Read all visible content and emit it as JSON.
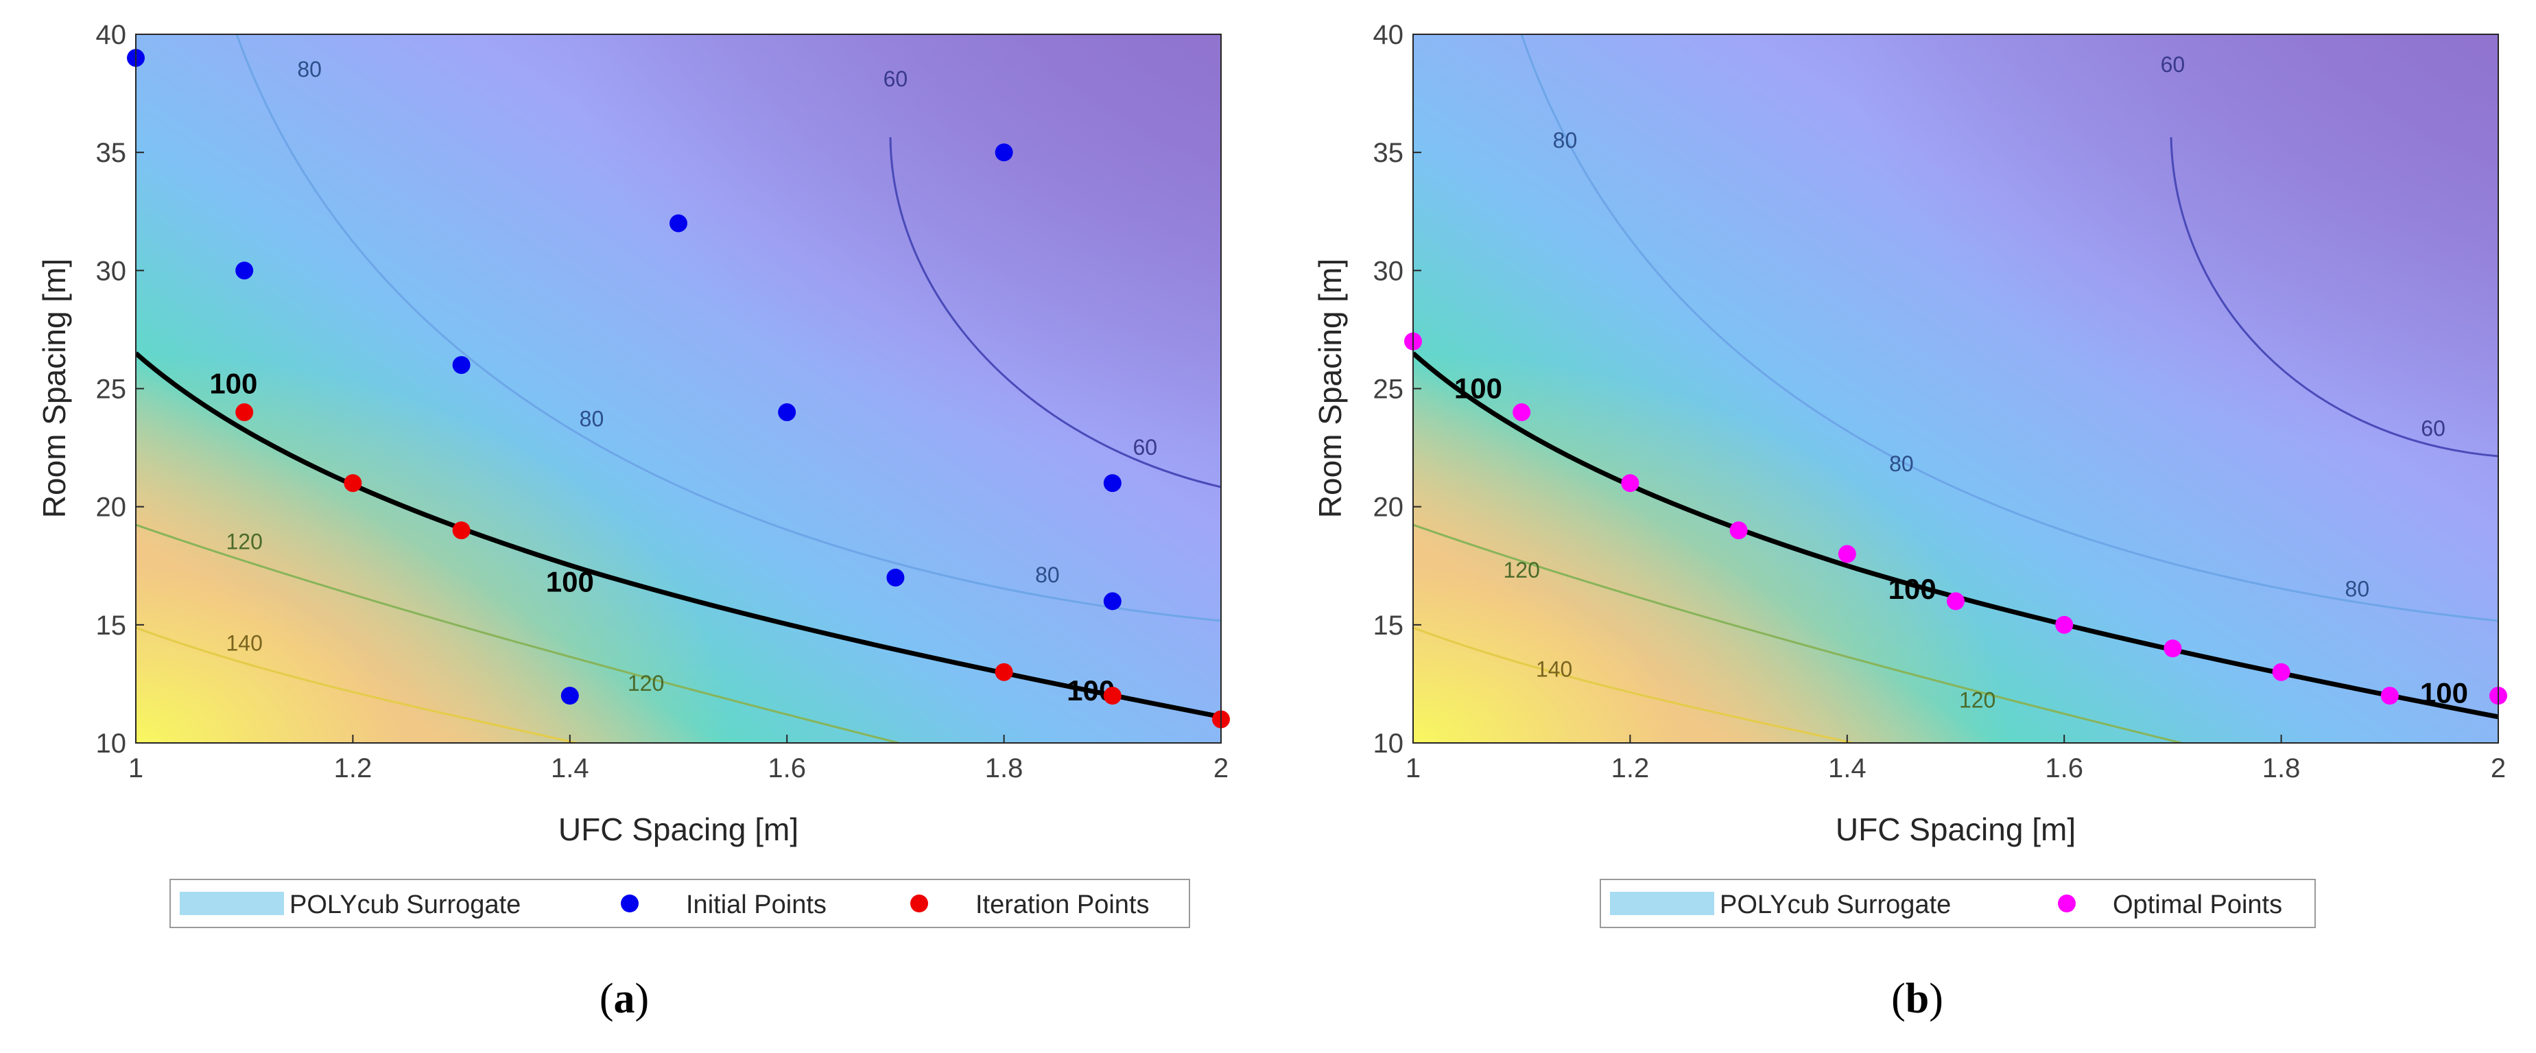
{
  "chart_data": [
    {
      "type": "scatter",
      "panel": "a",
      "surface": "contour",
      "xlabel": "UFC Spacing [m]",
      "ylabel": "Room Spacing [m]",
      "xlim": [
        1,
        2
      ],
      "ylim": [
        10,
        40
      ],
      "xticks": [
        "1",
        "1.2",
        "1.4",
        "1.6",
        "1.8",
        "2"
      ],
      "yticks": [
        "10",
        "15",
        "20",
        "25",
        "30",
        "35",
        "40"
      ],
      "contour_labels": [
        {
          "text": "80",
          "x": 1.16,
          "y": 38.2,
          "level": 80
        },
        {
          "text": "80",
          "x": 1.42,
          "y": 23.4,
          "level": 80
        },
        {
          "text": "80",
          "x": 1.84,
          "y": 16.8,
          "level": 80
        },
        {
          "text": "60",
          "x": 1.7,
          "y": 37.8,
          "level": 60
        },
        {
          "text": "60",
          "x": 1.93,
          "y": 22.2,
          "level": 60
        },
        {
          "text": "100",
          "x": 1.09,
          "y": 24.8,
          "level": 100
        },
        {
          "text": "100",
          "x": 1.4,
          "y": 16.4,
          "level": 100
        },
        {
          "text": "100",
          "x": 1.88,
          "y": 11.8,
          "level": 100
        },
        {
          "text": "120",
          "x": 1.1,
          "y": 18.2,
          "level": 120
        },
        {
          "text": "120",
          "x": 1.47,
          "y": 12.2,
          "level": 120
        },
        {
          "text": "140",
          "x": 1.1,
          "y": 13.9,
          "level": 140
        }
      ],
      "series": [
        {
          "name": "Initial Points",
          "color": "#0000ee",
          "x": [
            1.0,
            1.1,
            1.3,
            1.4,
            1.5,
            1.6,
            1.7,
            1.8,
            1.9,
            1.9
          ],
          "y": [
            39,
            30,
            26,
            12,
            32,
            24,
            17,
            35,
            21,
            16
          ]
        },
        {
          "name": "Iteration Points",
          "color": "#ee0000",
          "x": [
            1.1,
            1.2,
            1.3,
            1.8,
            1.9,
            2.0
          ],
          "y": [
            24,
            21,
            19,
            13,
            12,
            11
          ]
        }
      ],
      "legend": [
        "POLYcub Surrogate",
        "Initial Points",
        "Iteration Points"
      ],
      "legend_position": "bottom",
      "tag": "a"
    },
    {
      "type": "scatter",
      "panel": "b",
      "surface": "contour",
      "xlabel": "UFC Spacing [m]",
      "ylabel": "Room Spacing [m]",
      "xlim": [
        1,
        2
      ],
      "ylim": [
        10,
        40
      ],
      "xticks": [
        "1",
        "1.2",
        "1.4",
        "1.6",
        "1.8",
        "2"
      ],
      "yticks": [
        "10",
        "15",
        "20",
        "25",
        "30",
        "35",
        "40"
      ],
      "contour_labels": [
        {
          "text": "80",
          "x": 1.14,
          "y": 35.2,
          "level": 80
        },
        {
          "text": "80",
          "x": 1.45,
          "y": 21.5,
          "level": 80
        },
        {
          "text": "80",
          "x": 1.87,
          "y": 16.2,
          "level": 80
        },
        {
          "text": "60",
          "x": 1.7,
          "y": 38.4,
          "level": 60
        },
        {
          "text": "60",
          "x": 1.94,
          "y": 23.0,
          "level": 60
        },
        {
          "text": "100",
          "x": 1.06,
          "y": 24.6,
          "level": 100
        },
        {
          "text": "100",
          "x": 1.46,
          "y": 16.1,
          "level": 100
        },
        {
          "text": "100",
          "x": 1.95,
          "y": 11.7,
          "level": 100
        },
        {
          "text": "120",
          "x": 1.1,
          "y": 17.0,
          "level": 120
        },
        {
          "text": "120",
          "x": 1.52,
          "y": 11.5,
          "level": 120
        },
        {
          "text": "140",
          "x": 1.13,
          "y": 12.8,
          "level": 140
        }
      ],
      "series": [
        {
          "name": "Optimal Points",
          "color": "#ff00ff",
          "x": [
            1.0,
            1.1,
            1.2,
            1.3,
            1.4,
            1.5,
            1.6,
            1.7,
            1.8,
            1.9,
            2.0
          ],
          "y": [
            27,
            24,
            21,
            19,
            18,
            16,
            15,
            14,
            13,
            12,
            12
          ]
        }
      ],
      "legend": [
        "POLYcub Surrogate",
        "Optimal Points"
      ],
      "legend_position": "bottom",
      "tag": "b"
    }
  ],
  "colors": {
    "surrogate_legend": "#a8dcf2",
    "contour_line": "#6ea6e8",
    "contour_60": "#4a4ab8",
    "contour_100": "#000000",
    "contour_120": "#88b45a",
    "contour_140": "#e4cc4a"
  }
}
